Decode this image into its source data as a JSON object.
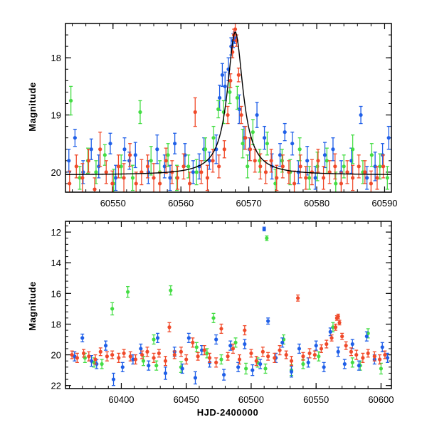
{
  "chart_data": [
    {
      "type": "scatter",
      "panel": "top",
      "title": "",
      "xlabel": "",
      "ylabel": "Magnitude",
      "xlim": [
        60543,
        60591
      ],
      "ylim": [
        20.35,
        17.4
      ],
      "y_inverted": true,
      "xticks": [
        60550,
        60560,
        60570,
        60580,
        60590
      ],
      "xtick_labels": [
        "60550",
        "60560",
        "60570",
        "60580",
        "60590"
      ],
      "yticks": [
        18,
        19,
        20
      ],
      "ytick_labels": [
        "18",
        "19",
        "20"
      ],
      "model_curve": {
        "name": "microlensing model",
        "color": "#000000",
        "baseline": 20.05,
        "peak_x": 60568.0,
        "peak_mag": 17.55,
        "timescale": 1.4
      },
      "series": [
        {
          "name": "blue",
          "color": "#1f5fe8",
          "x": [
            60543.5,
            60544.4,
            60545.6,
            60546.8,
            60547.9,
            60549.6,
            60550.4,
            60551.7,
            60552.4,
            60553.3,
            60555.2,
            60556.5,
            60557.6,
            60558.4,
            60559.1,
            60560.6,
            60561.8,
            60562.7,
            60563.4,
            60564.2,
            60565.2,
            60565.7,
            60566.1,
            60566.5,
            60567.0,
            60567.4,
            60567.7,
            60567.9,
            60568.6,
            60569.3,
            60570.1,
            60571.2,
            60572.3,
            60573.4,
            60574.6,
            60575.3,
            60576.4,
            60577.3,
            60578.6,
            60579.8,
            60581.2,
            60582.4,
            60583.6,
            60585.1,
            60586.5,
            60587.4,
            60588.6,
            60589.7,
            60590.6
          ],
          "y": [
            19.8,
            19.4,
            20.0,
            19.6,
            19.9,
            19.5,
            20.1,
            19.6,
            19.8,
            19.7,
            20.0,
            19.6,
            19.9,
            20.1,
            19.5,
            19.7,
            20.0,
            19.9,
            19.6,
            19.8,
            19.6,
            18.7,
            18.3,
            18.5,
            18.2,
            17.8,
            17.7,
            17.65,
            18.9,
            19.4,
            19.6,
            19.0,
            19.4,
            19.9,
            19.7,
            19.3,
            19.5,
            20.0,
            19.8,
            20.1,
            19.7,
            19.6,
            20.0,
            19.8,
            19.0,
            20.1,
            19.9,
            19.7,
            19.4
          ],
          "err": [
            0.2,
            0.15,
            0.2,
            0.18,
            0.2,
            0.18,
            0.22,
            0.2,
            0.15,
            0.22,
            0.2,
            0.25,
            0.2,
            0.22,
            0.18,
            0.2,
            0.2,
            0.22,
            0.2,
            0.15,
            0.25,
            0.22,
            0.2,
            0.25,
            0.2,
            0.15,
            0.12,
            0.1,
            0.25,
            0.2,
            0.2,
            0.22,
            0.2,
            0.22,
            0.2,
            0.15,
            0.2,
            0.2,
            0.25,
            0.2,
            0.22,
            0.2,
            0.2,
            0.22,
            0.15,
            0.2,
            0.25,
            0.2,
            0.2
          ]
        },
        {
          "name": "green",
          "color": "#44dd44",
          "x": [
            60543.8,
            60545.1,
            60546.3,
            60547.5,
            60548.8,
            60550.1,
            60551.2,
            60552.9,
            60554.0,
            60555.6,
            60556.9,
            60558.1,
            60559.4,
            60561.1,
            60562.3,
            60563.6,
            60564.8,
            60565.5,
            60566.3,
            60567.2,
            60568.3,
            60569.1,
            60569.8,
            60570.6,
            60571.6,
            60572.7,
            60573.9,
            60574.9,
            60576.1,
            60577.5,
            60578.9,
            60580.1,
            60581.5,
            60582.8,
            60584.0,
            60585.3,
            60586.8,
            60588.1,
            60589.3,
            60590.4
          ],
          "y": [
            18.75,
            20.1,
            19.8,
            20.0,
            19.7,
            20.2,
            19.9,
            20.1,
            18.95,
            19.8,
            20.0,
            19.7,
            20.1,
            19.9,
            20.0,
            19.6,
            19.4,
            18.9,
            18.95,
            18.6,
            18.7,
            19.5,
            19.9,
            19.3,
            19.8,
            19.5,
            20.2,
            19.8,
            20.0,
            19.6,
            20.1,
            19.9,
            19.8,
            20.2,
            19.9,
            19.6,
            20.0,
            19.7,
            19.9,
            20.1
          ],
          "err": [
            0.25,
            0.2,
            0.22,
            0.2,
            0.18,
            0.25,
            0.2,
            0.22,
            0.2,
            0.25,
            0.2,
            0.2,
            0.22,
            0.2,
            0.22,
            0.2,
            0.2,
            0.15,
            0.2,
            0.2,
            0.2,
            0.25,
            0.2,
            0.22,
            0.2,
            0.2,
            0.25,
            0.2,
            0.22,
            0.2,
            0.2,
            0.25,
            0.22,
            0.2,
            0.2,
            0.25,
            0.2,
            0.2,
            0.22,
            0.2
          ]
        },
        {
          "name": "red",
          "color": "#f04a2a",
          "x": [
            60543.6,
            60544.6,
            60545.5,
            60546.4,
            60547.3,
            60548.1,
            60549.0,
            60549.9,
            60550.8,
            60551.6,
            60552.5,
            60553.4,
            60554.2,
            60555.1,
            60556.0,
            60556.9,
            60557.8,
            60558.7,
            60559.5,
            60560.4,
            60561.3,
            60562.1,
            60563.0,
            60563.9,
            60564.7,
            60565.6,
            60566.4,
            60566.9,
            60567.3,
            60567.6,
            60567.8,
            60568.0,
            60568.2,
            60568.5,
            60568.9,
            60569.5,
            60570.2,
            60570.9,
            60571.7,
            60572.5,
            60573.3,
            60574.1,
            60575.0,
            60575.9,
            60576.7,
            60577.6,
            60578.4,
            60579.3,
            60580.2,
            60581.0,
            60581.9,
            60582.7,
            60583.6,
            60584.5,
            60585.3,
            60586.2,
            60587.1,
            60588.0,
            60588.9,
            60589.8
          ],
          "y": [
            20.2,
            19.9,
            20.1,
            19.8,
            20.3,
            19.6,
            20.0,
            20.2,
            19.9,
            20.1,
            19.7,
            20.2,
            20.0,
            19.9,
            20.1,
            20.2,
            19.8,
            20.0,
            20.1,
            19.9,
            20.2,
            18.95,
            20.0,
            20.1,
            19.8,
            19.9,
            19.6,
            19.0,
            18.4,
            17.9,
            17.6,
            17.5,
            17.7,
            18.3,
            19.0,
            19.4,
            19.6,
            19.8,
            19.9,
            20.0,
            19.8,
            20.1,
            19.9,
            20.0,
            20.2,
            19.9,
            20.1,
            20.0,
            19.8,
            20.1,
            20.0,
            19.9,
            20.2,
            20.0,
            20.1,
            19.9,
            20.0,
            20.2,
            20.1,
            19.9
          ],
          "err": [
            0.22,
            0.2,
            0.25,
            0.2,
            0.2,
            0.3,
            0.2,
            0.22,
            0.2,
            0.25,
            0.2,
            0.2,
            0.22,
            0.2,
            0.25,
            0.2,
            0.22,
            0.2,
            0.2,
            0.22,
            0.2,
            0.25,
            0.2,
            0.22,
            0.2,
            0.2,
            0.15,
            0.15,
            0.12,
            0.1,
            0.1,
            0.1,
            0.1,
            0.12,
            0.15,
            0.2,
            0.2,
            0.2,
            0.22,
            0.2,
            0.2,
            0.22,
            0.2,
            0.2,
            0.22,
            0.2,
            0.2,
            0.22,
            0.2,
            0.2,
            0.2,
            0.22,
            0.2,
            0.2,
            0.22,
            0.2,
            0.2,
            0.22,
            0.2,
            0.2
          ]
        }
      ]
    },
    {
      "type": "scatter",
      "panel": "bottom",
      "title": "",
      "xlabel": "HJD-2400000",
      "ylabel": "Magnitude",
      "xlim": [
        60357,
        60608
      ],
      "ylim": [
        22.2,
        11.3
      ],
      "y_inverted": true,
      "xticks": [
        60400,
        60450,
        60500,
        60550,
        60600
      ],
      "xtick_labels": [
        "60400",
        "60450",
        "60500",
        "60550",
        "60600"
      ],
      "yticks": [
        12,
        14,
        16,
        18,
        20,
        22
      ],
      "ytick_labels": [
        "12",
        "14",
        "16",
        "18",
        "20",
        "22"
      ],
      "series": [
        {
          "name": "green",
          "color": "#44dd44",
          "x": [
            60372,
            60385,
            60393,
            60405,
            60417,
            60425,
            60438,
            60446,
            60458,
            60471,
            60477,
            60488,
            60496,
            60505,
            60512,
            60525,
            60540,
            60552,
            60563,
            60578,
            60590,
            60600,
            60511,
            60379,
            60427,
            60466,
            60531,
            60584
          ],
          "y": [
            20.2,
            20.6,
            17.0,
            15.9,
            20.4,
            19.0,
            15.8,
            20.8,
            19.5,
            17.6,
            20.3,
            19.2,
            20.9,
            20.5,
            12.4,
            19.0,
            20.6,
            20.1,
            18.2,
            20.5,
            18.6,
            20.9,
            20.9,
            20.5,
            20.7,
            19.9,
            21.0,
            20.7
          ],
          "err": [
            0.3,
            0.3,
            0.4,
            0.35,
            0.3,
            0.3,
            0.3,
            0.35,
            0.3,
            0.3,
            0.3,
            0.3,
            0.35,
            0.3,
            0.15,
            0.3,
            0.3,
            0.3,
            0.3,
            0.3,
            0.3,
            0.35,
            0.3,
            0.3,
            0.3,
            0.3,
            0.35,
            0.3
          ]
        },
        {
          "name": "blue",
          "color": "#1f5fe8",
          "x": [
            60364,
            60370,
            60377,
            60381,
            60388,
            60394,
            60401,
            60409,
            60415,
            60421,
            60428,
            60434,
            60441,
            60447,
            60452,
            60457,
            60462,
            60468,
            60473,
            60479,
            60484,
            60490,
            60495,
            60501,
            60507,
            60510,
            60513,
            60519,
            60524,
            60531,
            60537,
            60544,
            60550,
            60556,
            60561,
            60567,
            60572,
            60578,
            60583,
            60589,
            60595,
            60601,
            60605
          ],
          "y": [
            20.1,
            18.9,
            20.4,
            20.6,
            19.4,
            21.6,
            20.8,
            20.3,
            19.6,
            20.7,
            18.9,
            21.2,
            19.8,
            20.9,
            18.9,
            21.5,
            19.7,
            20.5,
            19.0,
            21.3,
            19.4,
            20.8,
            19.3,
            21.0,
            20.6,
            11.8,
            17.8,
            20.2,
            19.2,
            21.1,
            19.6,
            20.5,
            19.4,
            20.8,
            18.5,
            19.8,
            20.6,
            19.3,
            20.7,
            18.8,
            20.3,
            19.5,
            20.2
          ],
          "err": [
            0.3,
            0.25,
            0.35,
            0.3,
            0.3,
            0.4,
            0.3,
            0.3,
            0.3,
            0.3,
            0.3,
            0.4,
            0.3,
            0.3,
            0.3,
            0.4,
            0.3,
            0.3,
            0.3,
            0.35,
            0.3,
            0.3,
            0.3,
            0.35,
            0.3,
            0.12,
            0.2,
            0.3,
            0.3,
            0.35,
            0.3,
            0.3,
            0.3,
            0.3,
            0.25,
            0.3,
            0.3,
            0.3,
            0.3,
            0.3,
            0.3,
            0.3,
            0.3
          ]
        },
        {
          "name": "red",
          "color": "#f04a2a",
          "x": [
            60362,
            60366,
            60371,
            60375,
            60380,
            60384,
            60389,
            60393,
            60398,
            60402,
            60407,
            60411,
            60416,
            60420,
            60425,
            60429,
            60434,
            60437,
            60441,
            60446,
            60450,
            60455,
            60459,
            60464,
            60468,
            60473,
            60477,
            60482,
            60486,
            60491,
            60495,
            60500,
            60504,
            60509,
            60513,
            60518,
            60522,
            60527,
            60531,
            60536,
            60540,
            60545,
            60549,
            60554,
            60558,
            60562,
            60565,
            60566,
            60567,
            60568,
            60570,
            60573,
            60577,
            60581,
            60586,
            60590,
            60595,
            60599,
            60603
          ],
          "y": [
            20.0,
            20.2,
            19.9,
            20.1,
            20.3,
            19.8,
            20.1,
            20.0,
            20.2,
            19.9,
            20.1,
            20.3,
            20.0,
            19.8,
            20.2,
            19.9,
            20.4,
            18.2,
            20.0,
            19.8,
            20.3,
            19.2,
            20.1,
            19.7,
            20.2,
            20.5,
            18.3,
            20.1,
            19.6,
            20.3,
            18.4,
            19.9,
            20.4,
            19.8,
            20.1,
            20.2,
            19.7,
            20.0,
            20.4,
            16.3,
            20.1,
            19.9,
            20.0,
            19.6,
            19.3,
            18.9,
            18.2,
            17.6,
            17.5,
            17.9,
            18.8,
            19.4,
            19.8,
            20.0,
            20.2,
            19.9,
            20.1,
            20.3,
            20.0
          ],
          "err": [
            0.25,
            0.3,
            0.25,
            0.3,
            0.3,
            0.25,
            0.3,
            0.25,
            0.3,
            0.25,
            0.3,
            0.3,
            0.25,
            0.3,
            0.3,
            0.25,
            0.3,
            0.3,
            0.25,
            0.3,
            0.3,
            0.3,
            0.25,
            0.3,
            0.3,
            0.3,
            0.3,
            0.25,
            0.3,
            0.3,
            0.3,
            0.25,
            0.3,
            0.3,
            0.25,
            0.3,
            0.3,
            0.25,
            0.3,
            0.2,
            0.25,
            0.3,
            0.25,
            0.25,
            0.25,
            0.2,
            0.2,
            0.15,
            0.15,
            0.15,
            0.2,
            0.25,
            0.25,
            0.3,
            0.3,
            0.25,
            0.3,
            0.3,
            0.25
          ]
        }
      ]
    }
  ]
}
